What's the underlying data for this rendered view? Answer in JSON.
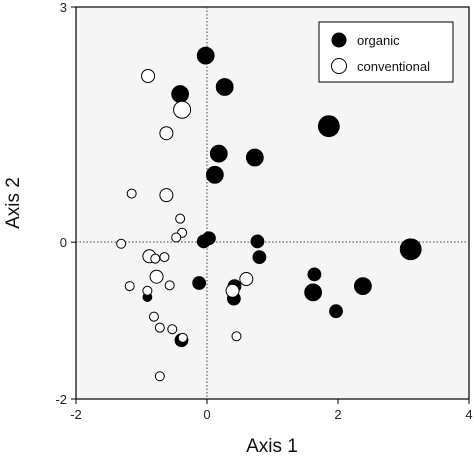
{
  "chart_data": {
    "type": "scatter",
    "title": "",
    "xlabel": "Axis 1",
    "ylabel": "Axis 2",
    "xlim": [
      -2,
      4
    ],
    "ylim": [
      -2,
      3
    ],
    "xticks": [
      "-2",
      "0",
      "2",
      "4"
    ],
    "yticks": [
      {
        "value": 3,
        "label": "3"
      },
      {
        "value": 0,
        "label": "0"
      },
      {
        "value": -2,
        "label": "-2"
      }
    ],
    "reference_lines": {
      "x": 0,
      "y": 0,
      "style": "dotted"
    },
    "grid": false,
    "legend_position": "top-right",
    "background_color": "#f5f5f5",
    "series": [
      {
        "name": "organic",
        "marker": "filled-circle",
        "color": "#000000",
        "points": [
          {
            "x": -0.02,
            "y": 2.38,
            "size": 3
          },
          {
            "x": -0.41,
            "y": 1.89,
            "size": 3
          },
          {
            "x": 0.27,
            "y": 1.98,
            "size": 3
          },
          {
            "x": 1.86,
            "y": 1.48,
            "size": 4
          },
          {
            "x": 0.18,
            "y": 1.13,
            "size": 3
          },
          {
            "x": 0.73,
            "y": 1.08,
            "size": 3
          },
          {
            "x": 0.12,
            "y": 0.86,
            "size": 3
          },
          {
            "x": -0.05,
            "y": 0.01,
            "size": 2
          },
          {
            "x": 0.03,
            "y": 0.05,
            "size": 2
          },
          {
            "x": 0.77,
            "y": 0.01,
            "size": 2
          },
          {
            "x": 0.8,
            "y": -0.19,
            "size": 2
          },
          {
            "x": 3.11,
            "y": -0.09,
            "size": 4
          },
          {
            "x": 1.64,
            "y": -0.41,
            "size": 2
          },
          {
            "x": 2.38,
            "y": -0.56,
            "size": 3
          },
          {
            "x": -0.12,
            "y": -0.52,
            "size": 2
          },
          {
            "x": 0.42,
            "y": -0.56,
            "size": 2
          },
          {
            "x": 1.62,
            "y": -0.64,
            "size": 3
          },
          {
            "x": 0.41,
            "y": -0.72,
            "size": 2
          },
          {
            "x": 1.97,
            "y": -0.88,
            "size": 2
          },
          {
            "x": -0.91,
            "y": -0.7,
            "size": 1
          },
          {
            "x": -0.39,
            "y": -1.25,
            "size": 2
          }
        ]
      },
      {
        "name": "conventional",
        "marker": "open-circle",
        "color": "#000000",
        "points": [
          {
            "x": -0.9,
            "y": 2.12,
            "size": 2
          },
          {
            "x": -0.38,
            "y": 1.69,
            "size": 3
          },
          {
            "x": -0.62,
            "y": 1.39,
            "size": 2
          },
          {
            "x": -1.15,
            "y": 0.62,
            "size": 1
          },
          {
            "x": -0.62,
            "y": 0.6,
            "size": 2
          },
          {
            "x": -0.41,
            "y": 0.3,
            "size": 1
          },
          {
            "x": -0.38,
            "y": 0.12,
            "size": 1
          },
          {
            "x": -0.47,
            "y": 0.06,
            "size": 1
          },
          {
            "x": -1.31,
            "y": -0.02,
            "size": 1
          },
          {
            "x": -0.88,
            "y": -0.18,
            "size": 2
          },
          {
            "x": -0.79,
            "y": -0.21,
            "size": 1
          },
          {
            "x": -0.65,
            "y": -0.19,
            "size": 1
          },
          {
            "x": -0.77,
            "y": -0.44,
            "size": 2
          },
          {
            "x": -0.57,
            "y": -0.55,
            "size": 1
          },
          {
            "x": -1.18,
            "y": -0.56,
            "size": 1
          },
          {
            "x": -0.91,
            "y": -0.62,
            "size": 1
          },
          {
            "x": 0.39,
            "y": -0.62,
            "size": 2
          },
          {
            "x": 0.6,
            "y": -0.47,
            "size": 2
          },
          {
            "x": -0.81,
            "y": -0.95,
            "size": 1
          },
          {
            "x": -0.72,
            "y": -1.09,
            "size": 1
          },
          {
            "x": -0.53,
            "y": -1.11,
            "size": 1
          },
          {
            "x": -0.37,
            "y": -1.22,
            "size": 1
          },
          {
            "x": 0.45,
            "y": -1.2,
            "size": 1
          },
          {
            "x": -0.72,
            "y": -1.71,
            "size": 1
          }
        ]
      }
    ]
  }
}
